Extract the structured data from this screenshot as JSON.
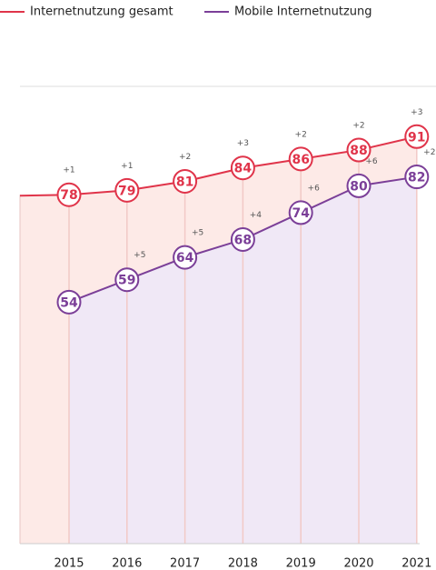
{
  "chart_data": {
    "type": "line",
    "categories": [
      "2015",
      "2016",
      "2017",
      "2018",
      "2019",
      "2020",
      "2021"
    ],
    "series": [
      {
        "name": "Internetnutzung gesamt",
        "color": "#e0344a",
        "area_color": "#fdeae7",
        "values": [
          78,
          79,
          81,
          84,
          86,
          88,
          91
        ],
        "changes": [
          "+1",
          "+1",
          "+2",
          "+3",
          "+2",
          "+2",
          "+3"
        ]
      },
      {
        "name": "Mobile Internetnutzung",
        "color": "#7b3f98",
        "area_color": "#f0e8f6",
        "values": [
          54,
          59,
          64,
          68,
          74,
          80,
          82
        ],
        "changes": [
          null,
          "+5",
          "+5",
          "+4",
          "+6",
          "+6",
          "+2"
        ]
      }
    ],
    "ylim": [
      0,
      100
    ],
    "legend": "top"
  }
}
